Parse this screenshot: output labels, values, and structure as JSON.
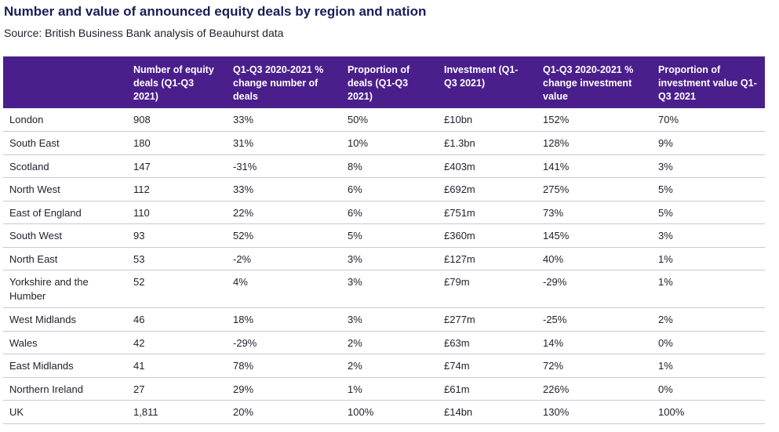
{
  "title": "Number and value of announced equity deals by region and nation",
  "subtitle": "Source: British Business Bank analysis of Beauhurst data",
  "table": {
    "headers": [
      "",
      "Number of equity deals (Q1-Q3 2021)",
      "Q1-Q3 2020-2021 % change number of deals",
      "Proportion of deals (Q1-Q3 2021)",
      "Investment (Q1-Q3 2021)",
      "Q1-Q3 2020-2021 % change investment value",
      "Proportion of investment value Q1-Q3 2021"
    ],
    "rows": [
      [
        "London",
        "908",
        "33%",
        "50%",
        "£10bn",
        "152%",
        "70%"
      ],
      [
        "South East",
        "180",
        "31%",
        "10%",
        "£1.3bn",
        "128%",
        "9%"
      ],
      [
        "Scotland",
        "147",
        "-31%",
        "8%",
        "£403m",
        "141%",
        "3%"
      ],
      [
        "North West",
        "112",
        "33%",
        "6%",
        "£692m",
        "275%",
        "5%"
      ],
      [
        "East of England",
        "110",
        "22%",
        "6%",
        "£751m",
        "73%",
        "5%"
      ],
      [
        "South West",
        "93",
        "52%",
        "5%",
        "£360m",
        "145%",
        "3%"
      ],
      [
        "North East",
        "53",
        "-2%",
        "3%",
        "£127m",
        "40%",
        "1%"
      ],
      [
        "Yorkshire and the Humber",
        "52",
        "4%",
        "3%",
        "£79m",
        "-29%",
        "1%"
      ],
      [
        "West Midlands",
        "46",
        "18%",
        "3%",
        "£277m",
        "-25%",
        "2%"
      ],
      [
        "Wales",
        "42",
        "-29%",
        "2%",
        "£63m",
        "14%",
        "0%"
      ],
      [
        "East Midlands",
        "41",
        "78%",
        "2%",
        "£74m",
        "72%",
        "1%"
      ],
      [
        "Northern Ireland",
        "27",
        "29%",
        "1%",
        "£61m",
        "226%",
        "0%"
      ],
      [
        "UK",
        "1,811",
        "20%",
        "100%",
        "£14bn",
        "130%",
        "100%"
      ]
    ]
  },
  "colors": {
    "header_bg": "#4a1f8c",
    "title": "#1b1d57"
  }
}
